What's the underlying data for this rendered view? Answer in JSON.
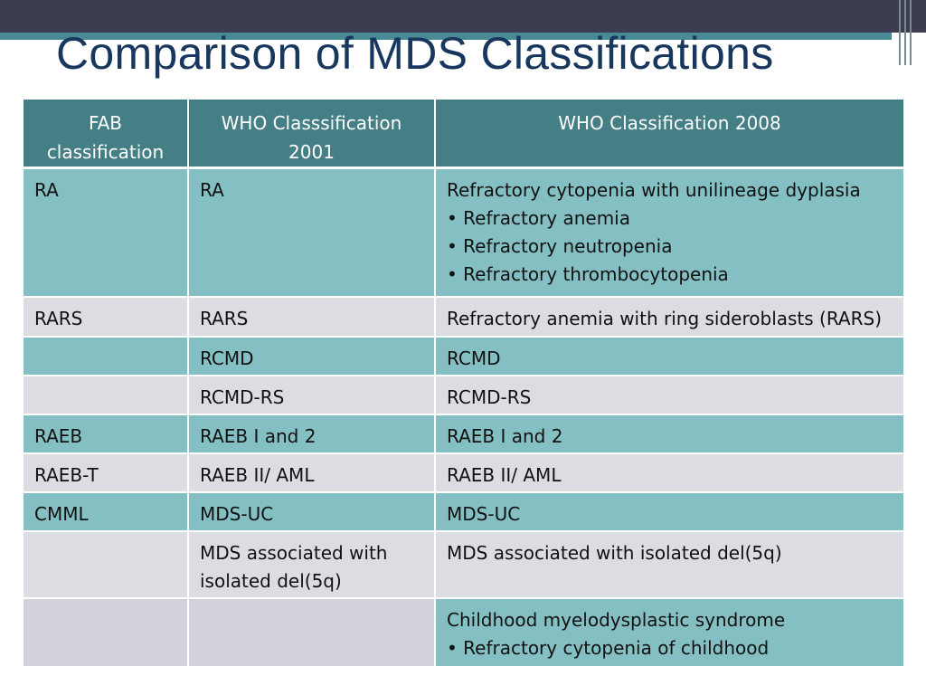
{
  "slide": {
    "title": "Comparison of MDS Classifications"
  },
  "table": {
    "headers": [
      "FAB classification",
      "WHO Classsification 2001",
      "WHO Classification 2008"
    ],
    "rows": [
      {
        "fab": "RA",
        "who2001": "RA",
        "who2008": {
          "main": "Refractory cytopenia with unilineage dyplasia",
          "bullets": [
            "• Refractory anemia",
            "• Refractory neutropenia",
            "• Refractory thrombocytopenia"
          ]
        }
      },
      {
        "fab": "RARS",
        "who2001": "RARS",
        "who2008": "Refractory anemia with ring sideroblasts (RARS)"
      },
      {
        "fab": "",
        "who2001": "RCMD",
        "who2008": "RCMD"
      },
      {
        "fab": "",
        "who2001": "RCMD-RS",
        "who2008": "RCMD-RS"
      },
      {
        "fab": "RAEB",
        "who2001": "RAEB I and 2",
        "who2008": "RAEB I and 2"
      },
      {
        "fab": "RAEB-T",
        "who2001": "RAEB II/ AML",
        "who2008": "RAEB II/ AML"
      },
      {
        "fab": "CMML",
        "who2001": "MDS-UC",
        "who2008": "MDS-UC"
      },
      {
        "fab": "",
        "who2001": "MDS associated with isolated del(5q)",
        "who2008": "MDS associated with isolated del(5q)"
      },
      {
        "fab": "",
        "who2001": "",
        "who2008": {
          "main": "Childhood myelodysplastic syndrome",
          "bullets": [
            "• Refractory cytopenia of childhood"
          ]
        }
      }
    ]
  },
  "colors": {
    "header_bg": "#457f86",
    "row_teal": "#84c0c3",
    "row_gray": "#dcdde3",
    "title_color": "#17375e",
    "top_bar": "#3d3d52"
  }
}
